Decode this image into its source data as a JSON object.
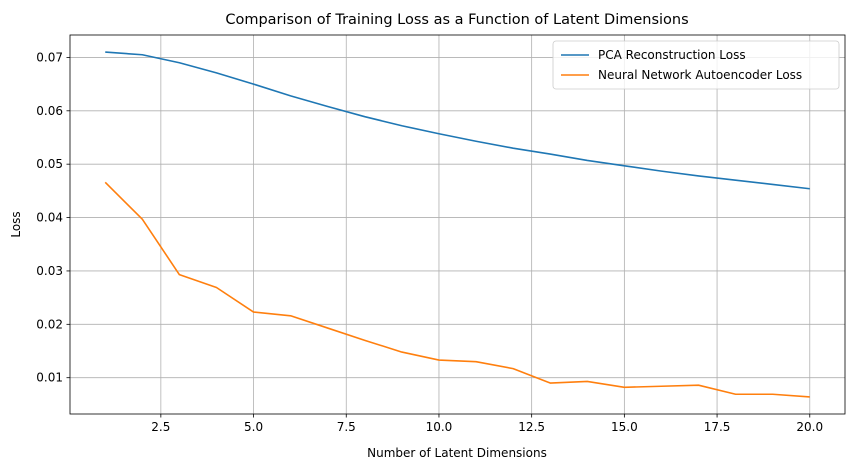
{
  "chart_data": {
    "type": "line",
    "title": "Comparison of Training Loss as a Function of Latent Dimensions",
    "xlabel": "Number of Latent Dimensions",
    "ylabel": "Loss",
    "xlim": [
      0.05,
      20.95
    ],
    "ylim": [
      0.0032,
      0.0742
    ],
    "xticks": [
      2.5,
      5.0,
      7.5,
      10.0,
      12.5,
      15.0,
      17.5,
      20.0
    ],
    "xtick_labels": [
      "2.5",
      "5.0",
      "7.5",
      "10.0",
      "12.5",
      "15.0",
      "17.5",
      "20.0"
    ],
    "yticks": [
      0.01,
      0.02,
      0.03,
      0.04,
      0.05,
      0.06,
      0.07
    ],
    "ytick_labels": [
      "0.01",
      "0.02",
      "0.03",
      "0.04",
      "0.05",
      "0.06",
      "0.07"
    ],
    "grid": true,
    "legend_position": "top-right",
    "x": [
      1,
      2,
      3,
      4,
      5,
      6,
      7,
      8,
      9,
      10,
      11,
      12,
      13,
      14,
      15,
      16,
      17,
      18,
      19,
      20
    ],
    "series": [
      {
        "name": "PCA Reconstruction Loss",
        "color": "#1f77b4",
        "values": [
          0.071,
          0.0705,
          0.069,
          0.0671,
          0.065,
          0.0628,
          0.0608,
          0.0589,
          0.0572,
          0.0557,
          0.0543,
          0.053,
          0.0519,
          0.0507,
          0.0497,
          0.0487,
          0.0478,
          0.047,
          0.0462,
          0.0454
        ]
      },
      {
        "name": "Neural Network Autoencoder Loss",
        "color": "#ff7f0e",
        "values": [
          0.0466,
          0.0397,
          0.0293,
          0.0269,
          0.0223,
          0.0216,
          0.0193,
          0.017,
          0.0148,
          0.0133,
          0.013,
          0.0117,
          0.009,
          0.0093,
          0.0082,
          0.0084,
          0.0086,
          0.0069,
          0.0069,
          0.0064
        ]
      }
    ]
  }
}
